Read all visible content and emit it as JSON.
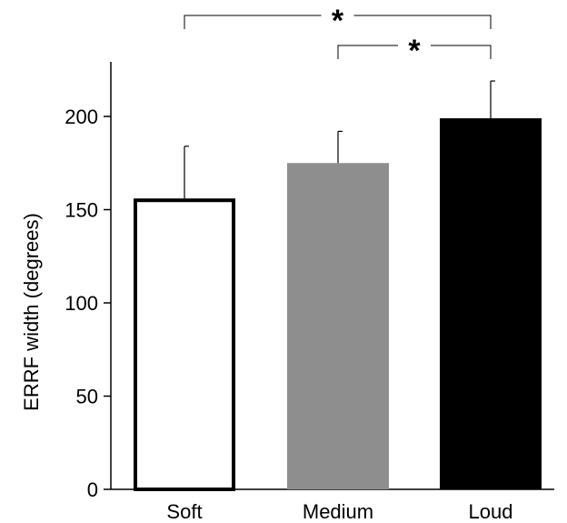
{
  "chart_data": {
    "type": "bar",
    "title": "",
    "xlabel": "",
    "ylabel": "ERRF width (degrees)",
    "ylim": [
      0,
      230
    ],
    "yticks": [
      0,
      50,
      100,
      150,
      200
    ],
    "categories": [
      "Soft",
      "Medium",
      "Loud"
    ],
    "values": [
      156,
      175,
      199
    ],
    "error_upper": [
      184,
      192,
      219
    ],
    "colors": {
      "Soft": "#ffffff",
      "Medium": "#8e8e8e",
      "Loud": "#000000"
    },
    "significance": [
      {
        "from": "Soft",
        "to": "Loud",
        "label": "*"
      },
      {
        "from": "Medium",
        "to": "Loud",
        "label": "*"
      }
    ],
    "grid": false,
    "legend": "none"
  }
}
